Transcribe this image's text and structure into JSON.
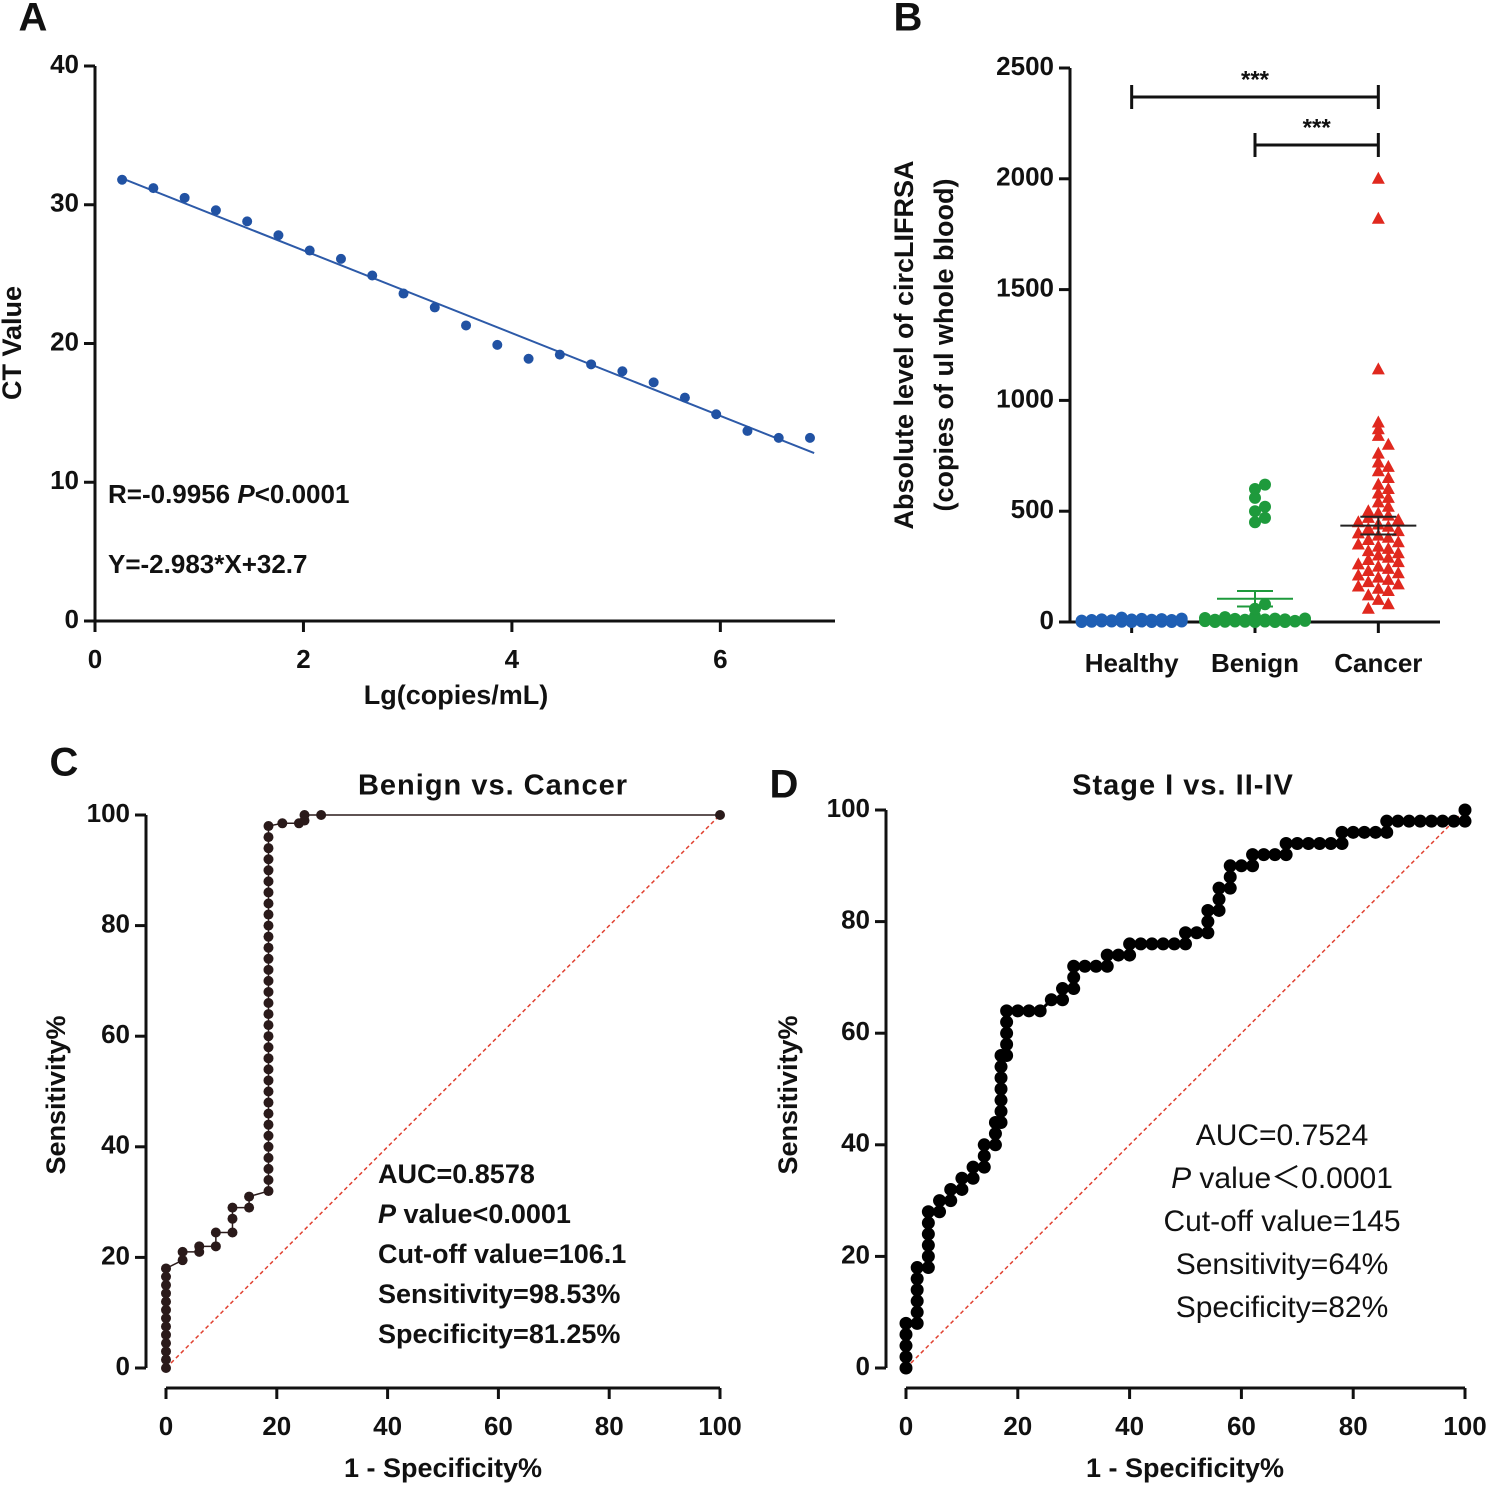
{
  "chart_data": [
    {
      "type": "scatter",
      "panel_label": "A",
      "xlabel": "Lg(copies/mL)",
      "ylabel": "CT Value",
      "x": [
        0.26,
        0.56,
        0.86,
        1.16,
        1.46,
        1.76,
        2.06,
        2.36,
        2.66,
        2.96,
        3.26,
        3.56,
        3.86,
        4.16,
        4.46,
        4.76,
        5.06,
        5.36,
        5.66,
        5.96,
        6.26,
        6.56,
        6.86
      ],
      "values": [
        31.8,
        31.2,
        30.5,
        29.6,
        28.8,
        27.8,
        26.7,
        26.1,
        24.9,
        23.6,
        22.6,
        21.3,
        19.9,
        18.9,
        19.2,
        18.5,
        18.0,
        17.2,
        16.1,
        14.9,
        13.7,
        13.2,
        13.2
      ],
      "color": "#2152a3",
      "fit": {
        "x": [
          0.26,
          6.9
        ],
        "y": [
          31.9,
          12.1
        ],
        "color": "#2d5aa8"
      },
      "xlim": [
        0,
        7.1
      ],
      "xticks": [
        0,
        2,
        4,
        6
      ],
      "ylim": [
        0,
        40
      ],
      "yticks": [
        0,
        10,
        20,
        30,
        40
      ],
      "annotations": [
        [
          {
            "text": "R=-0.9956 "
          },
          {
            "text": "P",
            "italic": true
          },
          {
            "text": "<0.0001"
          }
        ],
        [
          {
            "text": "Y=-2.983*X+32.7"
          }
        ]
      ]
    },
    {
      "type": "strip",
      "panel_label": "B",
      "ylabel": [
        "Absolute level of circLIFRSA",
        "(copies of ul whole blood)"
      ],
      "categories": [
        "Healthy",
        "Benign",
        "Cancer"
      ],
      "series": [
        {
          "name": "Healthy",
          "color": "#1f5fb4",
          "marker": "circle",
          "mean": 8,
          "error": 2,
          "values": [
            0,
            2,
            5,
            8,
            3,
            1,
            10,
            4,
            6,
            12,
            0,
            7,
            9,
            2,
            15,
            3,
            5,
            1,
            11,
            6,
            20,
            4,
            8,
            2,
            13,
            0,
            5,
            9,
            3,
            7,
            1,
            6,
            10,
            2,
            4,
            14,
            0,
            8,
            3,
            5
          ]
        },
        {
          "name": "Benign",
          "color": "#1e9a3c",
          "marker": "circle",
          "mean": 105,
          "error": 35,
          "values": [
            0,
            3,
            6,
            10,
            2,
            15,
            8,
            1,
            12,
            20,
            4,
            0,
            9,
            5,
            18,
            7,
            2,
            25,
            11,
            3,
            6,
            0,
            14,
            8,
            1,
            22,
            5,
            10,
            2,
            16,
            4,
            0,
            7,
            12,
            3,
            60,
            80,
            450,
            470,
            500,
            520,
            560,
            600,
            620
          ]
        },
        {
          "name": "Cancer",
          "color": "#e0281e",
          "marker": "triangle",
          "mean": 435,
          "error": 40,
          "values": [
            2000,
            1820,
            1140,
            900,
            870,
            840,
            800,
            760,
            720,
            700,
            680,
            650,
            620,
            600,
            580,
            560,
            540,
            520,
            500,
            490,
            480,
            470,
            460,
            450,
            440,
            430,
            420,
            410,
            400,
            390,
            380,
            370,
            360,
            350,
            340,
            330,
            320,
            310,
            300,
            290,
            280,
            270,
            260,
            250,
            240,
            230,
            220,
            210,
            200,
            190,
            180,
            170,
            160,
            150,
            140,
            120,
            100,
            80,
            60
          ]
        }
      ],
      "ylim": [
        0,
        2500
      ],
      "yticks": [
        0,
        500,
        1000,
        1500,
        2000,
        2500
      ],
      "significance": [
        {
          "between": [
            0,
            2
          ],
          "label": "***"
        },
        {
          "between": [
            1,
            2
          ],
          "label": "***"
        }
      ]
    },
    {
      "type": "roc",
      "panel_label": "C",
      "title": "Benign vs. Cancer",
      "xlabel": "1 - Specificity%",
      "ylabel": "Sensitivity%",
      "x": [
        0,
        0,
        0,
        0,
        0,
        0,
        0,
        0,
        0,
        0,
        0,
        0,
        0,
        3,
        3,
        6,
        6,
        9,
        9,
        12,
        12,
        12,
        15,
        15,
        18.5,
        18.5,
        18.5,
        18.5,
        18.5,
        18.5,
        18.5,
        18.5,
        18.5,
        18.5,
        18.5,
        18.5,
        18.5,
        18.5,
        18.5,
        18.5,
        18.5,
        18.5,
        18.5,
        18.5,
        18.5,
        18.5,
        18.5,
        18.5,
        18.5,
        18.5,
        18.5,
        18.5,
        18.5,
        18.5,
        18.5,
        18.5,
        18.5,
        18.5,
        21,
        24,
        25,
        25,
        28,
        100
      ],
      "values": [
        0,
        1.5,
        3,
        4.5,
        6,
        7.5,
        9,
        10.5,
        12,
        13.5,
        15,
        16.5,
        18,
        19.5,
        21,
        21,
        22,
        22,
        24.5,
        24.5,
        27,
        29,
        29,
        31,
        32,
        34,
        36,
        38,
        40,
        42,
        44,
        46,
        48,
        50,
        52,
        54,
        56,
        58,
        60,
        62,
        64,
        66,
        68,
        70,
        72,
        74,
        76,
        78,
        80,
        82,
        84,
        86,
        88,
        90,
        92,
        94,
        96,
        98,
        98.5,
        98.5,
        99,
        100,
        100,
        100
      ],
      "color": "#2a1a1a",
      "reference_line": {
        "x": [
          0,
          100
        ],
        "y": [
          0,
          100
        ],
        "color": "#e04030"
      },
      "xlim": [
        0,
        100
      ],
      "xticks": [
        0,
        20,
        40,
        60,
        80,
        100
      ],
      "ylim": [
        0,
        100
      ],
      "yticks": [
        0,
        20,
        40,
        60,
        80,
        100
      ],
      "annotations": [
        [
          {
            "text": "AUC=0.8578"
          }
        ],
        [
          {
            "text": "P",
            "italic": true
          },
          {
            "text": " value<0.0001"
          }
        ],
        [
          {
            "text": "Cut-off value=106.1"
          }
        ],
        [
          {
            "text": "Sensitivity=98.53%"
          }
        ],
        [
          {
            "text": "Specificity=81.25%"
          }
        ]
      ]
    },
    {
      "type": "roc",
      "panel_label": "D",
      "title": "Stage I vs. II-IV",
      "xlabel": "1 - Specificity%",
      "ylabel": "Sensitivity%",
      "x": [
        0,
        0,
        0,
        0,
        0,
        2,
        2,
        2,
        2,
        2,
        2,
        4,
        4,
        4,
        4,
        4,
        4,
        6,
        6,
        8,
        8,
        10,
        10,
        12,
        12,
        14,
        14,
        14,
        16,
        16,
        16,
        17,
        17,
        17,
        17,
        17,
        17,
        17,
        18,
        18,
        18,
        18,
        18,
        20,
        22,
        24,
        26,
        28,
        28,
        30,
        30,
        30,
        32,
        34,
        36,
        36,
        38,
        40,
        40,
        42,
        44,
        46,
        48,
        50,
        50,
        52,
        54,
        54,
        54,
        56,
        56,
        56,
        58,
        58,
        58,
        60,
        62,
        62,
        64,
        66,
        68,
        68,
        70,
        72,
        74,
        76,
        78,
        78,
        80,
        82,
        84,
        86,
        86,
        88,
        90,
        92,
        94,
        96,
        98,
        100,
        100
      ],
      "values": [
        0,
        2,
        4,
        6,
        8,
        8,
        10,
        12,
        14,
        16,
        18,
        18,
        20,
        22,
        24,
        26,
        28,
        28,
        30,
        30,
        32,
        32,
        34,
        34,
        36,
        36,
        38,
        40,
        40,
        42,
        44,
        44,
        46,
        48,
        50,
        52,
        54,
        56,
        56,
        58,
        60,
        62,
        64,
        64,
        64,
        64,
        66,
        66,
        68,
        68,
        70,
        72,
        72,
        72,
        72,
        74,
        74,
        74,
        76,
        76,
        76,
        76,
        76,
        76,
        78,
        78,
        78,
        80,
        82,
        82,
        84,
        86,
        86,
        88,
        90,
        90,
        90,
        92,
        92,
        92,
        92,
        94,
        94,
        94,
        94,
        94,
        94,
        96,
        96,
        96,
        96,
        96,
        98,
        98,
        98,
        98,
        98,
        98,
        98,
        98,
        100
      ],
      "color": "#000000",
      "reference_line": {
        "x": [
          0,
          100
        ],
        "y": [
          0,
          100
        ],
        "color": "#e04030"
      },
      "xlim": [
        0,
        100
      ],
      "xticks": [
        0,
        20,
        40,
        60,
        80,
        100
      ],
      "ylim": [
        0,
        100
      ],
      "yticks": [
        0,
        20,
        40,
        60,
        80,
        100
      ],
      "annotations": [
        [
          {
            "text": "AUC=0.7524"
          }
        ],
        [
          {
            "text": "P",
            "italic": true
          },
          {
            "text": " value＜0.0001"
          }
        ],
        [
          {
            "text": "Cut-off value=145"
          }
        ],
        [
          {
            "text": "Sensitivity=64%"
          }
        ],
        [
          {
            "text": "Specificity=82%"
          }
        ]
      ]
    }
  ]
}
